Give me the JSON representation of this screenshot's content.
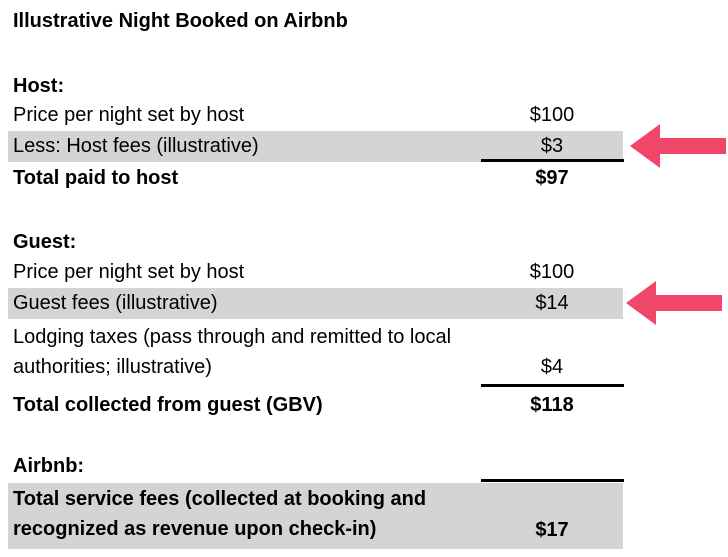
{
  "title": "Illustrative Night Booked on Airbnb",
  "host": {
    "heading": "Host:",
    "rows": [
      {
        "label": "Price per night set by host",
        "value": "$100"
      },
      {
        "label": "Less: Host fees (illustrative)",
        "value": "$3"
      },
      {
        "label": "Total paid to host",
        "value": "$97"
      }
    ]
  },
  "guest": {
    "heading": "Guest:",
    "rows": [
      {
        "label": "Price per night set by host",
        "value": "$100"
      },
      {
        "label": "Guest fees (illustrative)",
        "value": "$14"
      },
      {
        "label": "Lodging taxes (pass through and remitted to local authorities; illustrative)",
        "value": "$4"
      },
      {
        "label": "Total collected from guest (GBV)",
        "value": "$118"
      }
    ]
  },
  "airbnb": {
    "heading": "Airbnb:",
    "rows": [
      {
        "label": "Total service fees (collected at booking and recognized as revenue upon check-in)",
        "value": "$17"
      }
    ]
  },
  "colors": {
    "highlight_row": "#d4d4d4",
    "arrow": "#f0466a"
  },
  "icons": {
    "host_fee_arrow": "left-arrow-icon",
    "guest_fee_arrow": "left-arrow-icon"
  }
}
